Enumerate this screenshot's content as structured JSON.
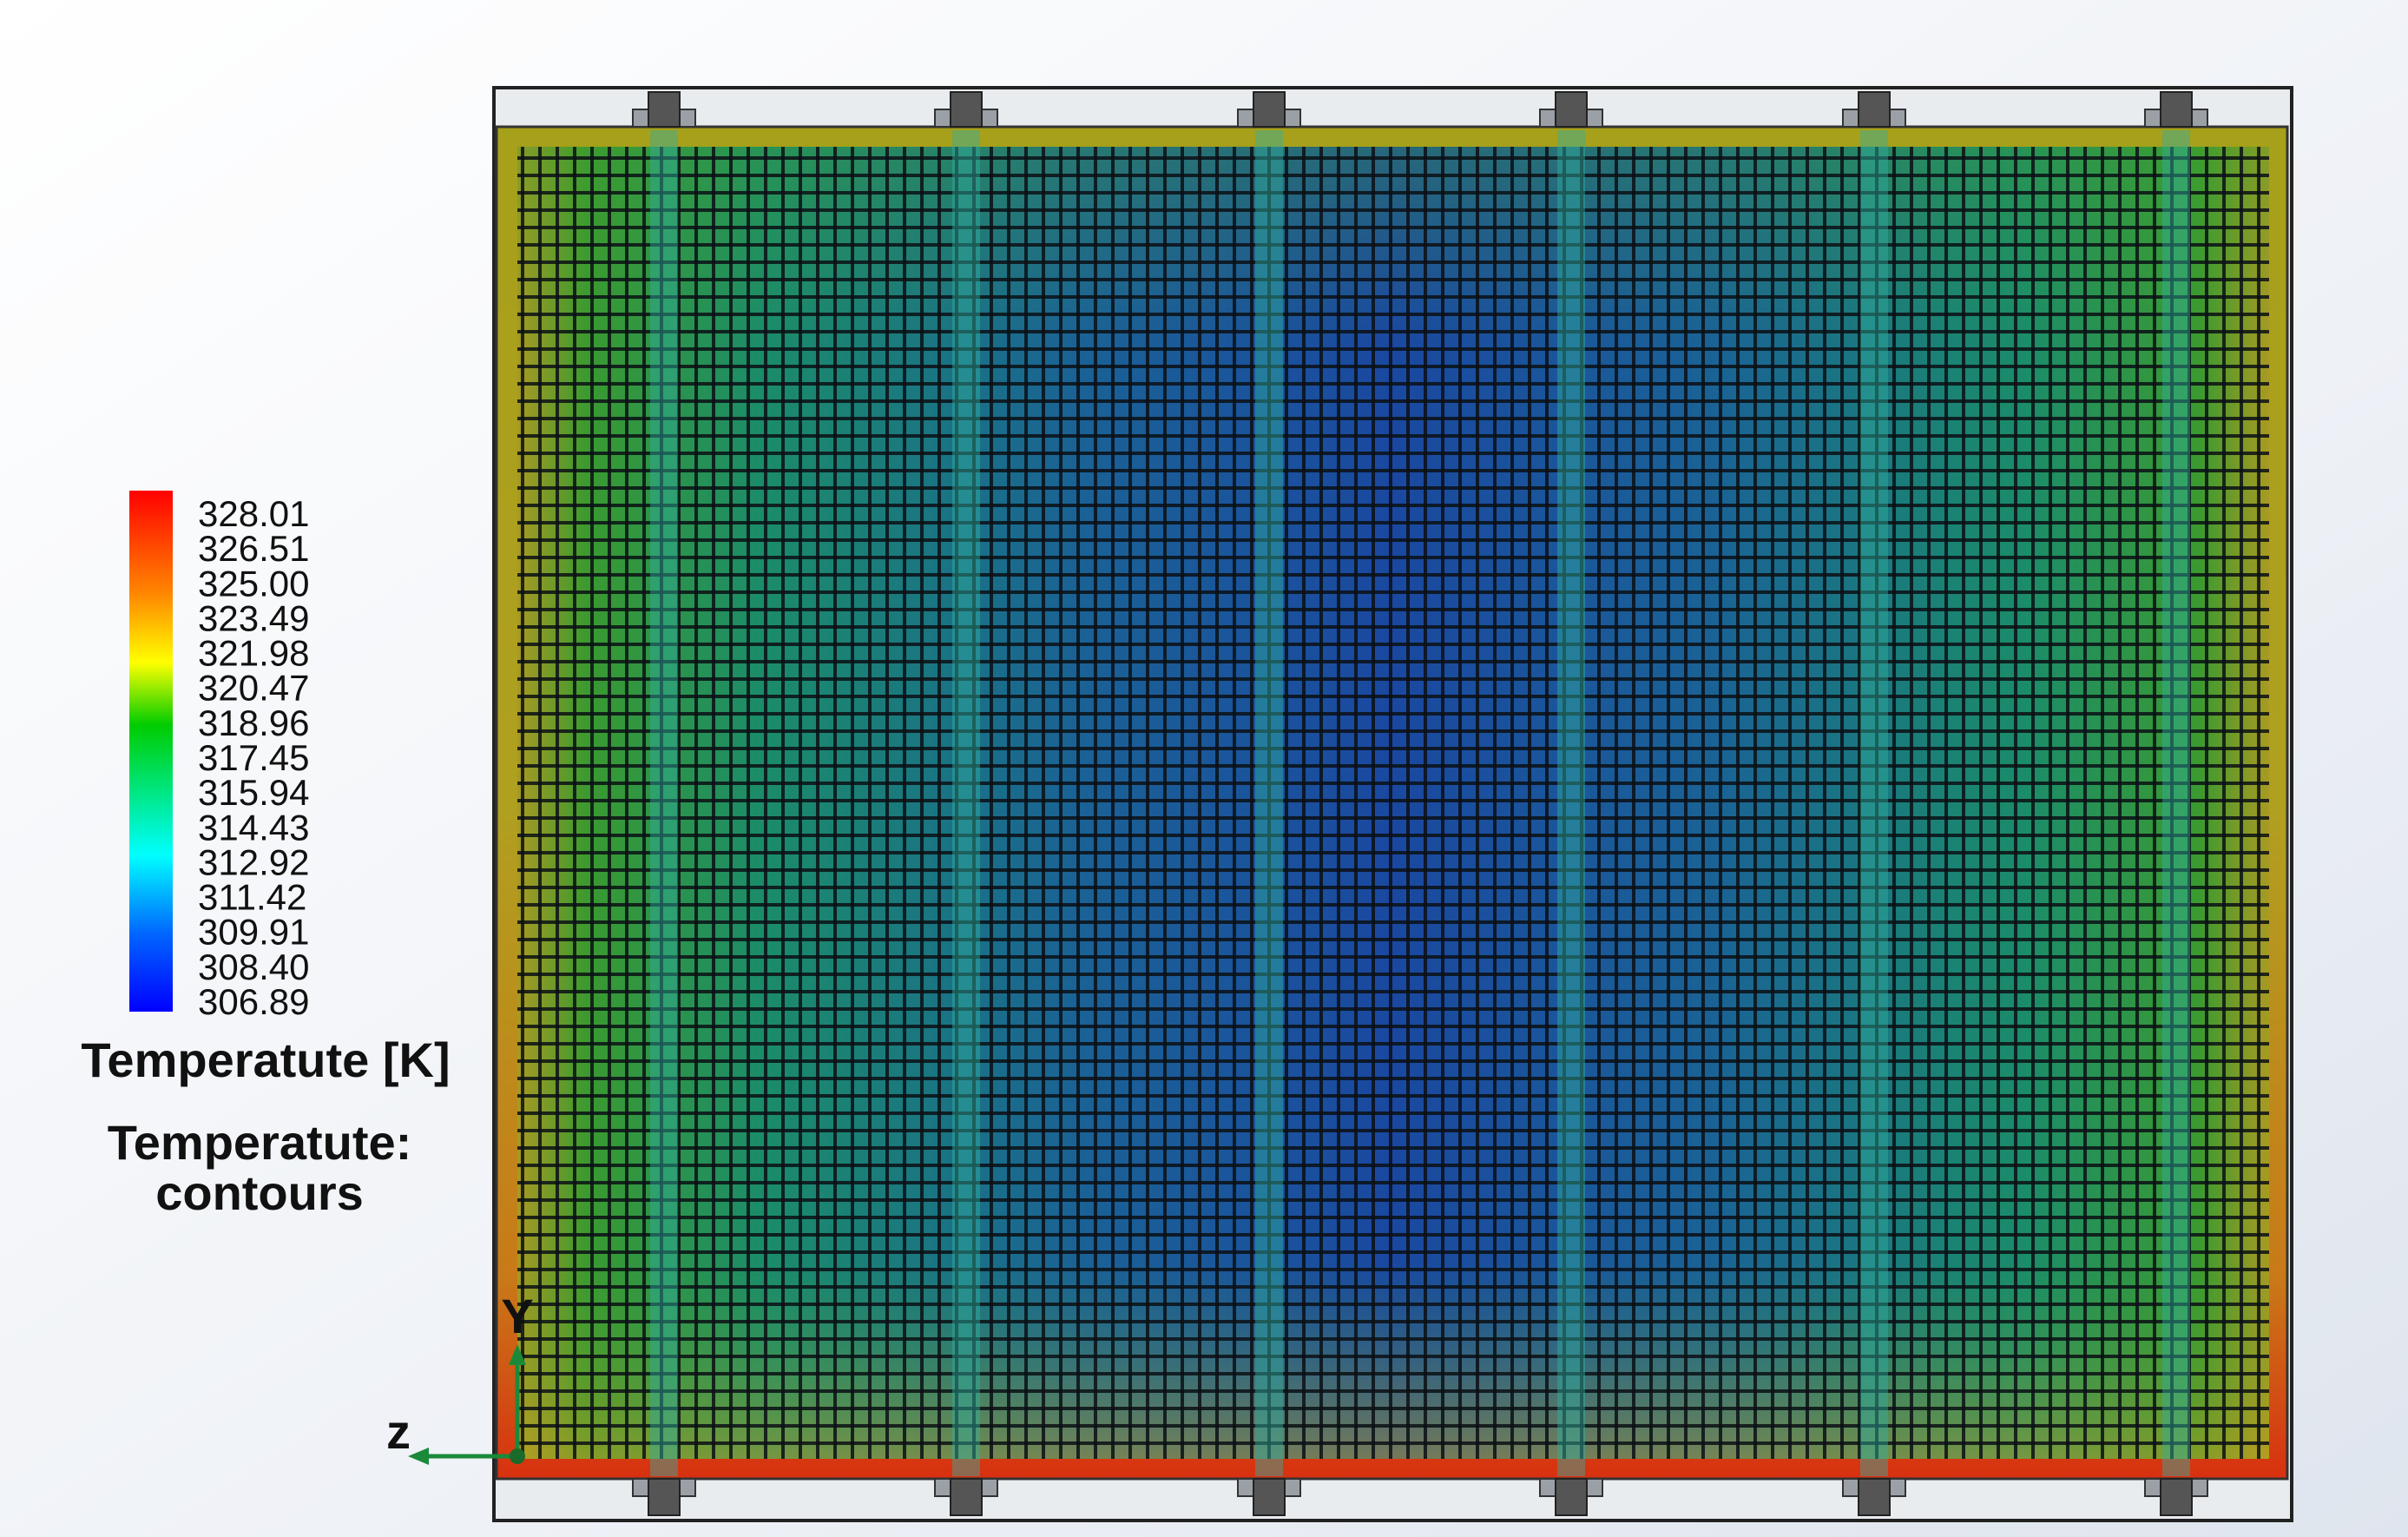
{
  "legend": {
    "ticks": [
      "328.01",
      "326.51",
      "325.00",
      "323.49",
      "321.98",
      "320.47",
      "318.96",
      "317.45",
      "315.94",
      "314.43",
      "312.92",
      "311.42",
      "309.91",
      "308.40",
      "306.89"
    ],
    "title": "Temperatute [K]"
  },
  "caption": {
    "line1": "Temperatute:",
    "line2": "contours"
  },
  "axes": {
    "y": "Y",
    "z": "z"
  }
}
